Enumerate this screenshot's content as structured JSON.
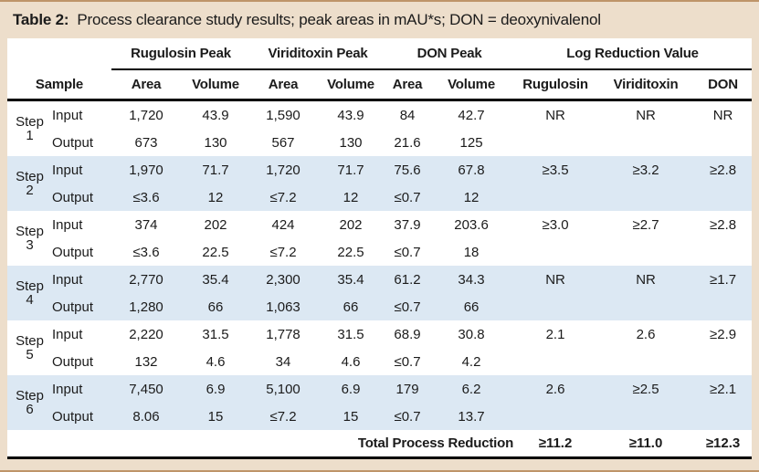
{
  "title": {
    "label": "Table 2:",
    "text": "Process clearance study results; peak areas in mAU*s; DON = deoxynivalenol"
  },
  "colors": {
    "frame_background": "#EDDECB",
    "frame_border": "#BE9469",
    "row_stripe": "#DCE8F3",
    "rule": "#000000",
    "text": "#1b1b1b"
  },
  "table": {
    "groups": [
      {
        "label": "Rugulosin Peak"
      },
      {
        "label": "Viriditoxin Peak"
      },
      {
        "label": "DON Peak"
      },
      {
        "label": "Log Reduction Value"
      }
    ],
    "sub_headers": [
      "Sample",
      "Area",
      "Volume",
      "Area",
      "Volume",
      "Area",
      "Volume",
      "Rugulosin",
      "Viriditoxin",
      "DON"
    ],
    "steps": [
      {
        "label": "Step",
        "number": "1",
        "shaded": false,
        "rows": [
          [
            "Input",
            "1,720",
            "43.9",
            "1,590",
            "43.9",
            "84",
            "42.7",
            "NR",
            "NR",
            "NR"
          ],
          [
            "Output",
            "673",
            "130",
            "567",
            "130",
            "21.6",
            "125",
            "",
            "",
            ""
          ]
        ]
      },
      {
        "label": "Step",
        "number": "2",
        "shaded": true,
        "rows": [
          [
            "Input",
            "1,970",
            "71.7",
            "1,720",
            "71.7",
            "75.6",
            "67.8",
            "≥3.5",
            "≥3.2",
            "≥2.8"
          ],
          [
            "Output",
            "≤3.6",
            "12",
            "≤7.2",
            "12",
            "≤0.7",
            "12",
            "",
            "",
            ""
          ]
        ]
      },
      {
        "label": "Step",
        "number": "3",
        "shaded": false,
        "rows": [
          [
            "Input",
            "374",
            "202",
            "424",
            "202",
            "37.9",
            "203.6",
            "≥3.0",
            "≥2.7",
            "≥2.8"
          ],
          [
            "Output",
            "≤3.6",
            "22.5",
            "≤7.2",
            "22.5",
            "≤0.7",
            "18",
            "",
            "",
            ""
          ]
        ]
      },
      {
        "label": "Step",
        "number": "4",
        "shaded": true,
        "rows": [
          [
            "Input",
            "2,770",
            "35.4",
            "2,300",
            "35.4",
            "61.2",
            "34.3",
            "NR",
            "NR",
            "≥1.7"
          ],
          [
            "Output",
            "1,280",
            "66",
            "1,063",
            "66",
            "≤0.7",
            "66",
            "",
            "",
            ""
          ]
        ]
      },
      {
        "label": "Step",
        "number": "5",
        "shaded": false,
        "rows": [
          [
            "Input",
            "2,220",
            "31.5",
            "1,778",
            "31.5",
            "68.9",
            "30.8",
            "2.1",
            "2.6",
            "≥2.9"
          ],
          [
            "Output",
            "132",
            "4.6",
            "34",
            "4.6",
            "≤0.7",
            "4.2",
            "",
            "",
            ""
          ]
        ]
      },
      {
        "label": "Step",
        "number": "6",
        "shaded": true,
        "rows": [
          [
            "Input",
            "7,450",
            "6.9",
            "5,100",
            "6.9",
            "179",
            "6.2",
            "2.6",
            "≥2.5",
            "≥2.1"
          ],
          [
            "Output",
            "8.06",
            "15",
            "≤7.2",
            "15",
            "≤0.7",
            "13.7",
            "",
            "",
            ""
          ]
        ]
      }
    ],
    "total": {
      "label": "Total Process Reduction",
      "values": [
        "≥11.2",
        "≥11.0",
        "≥12.3"
      ]
    }
  }
}
